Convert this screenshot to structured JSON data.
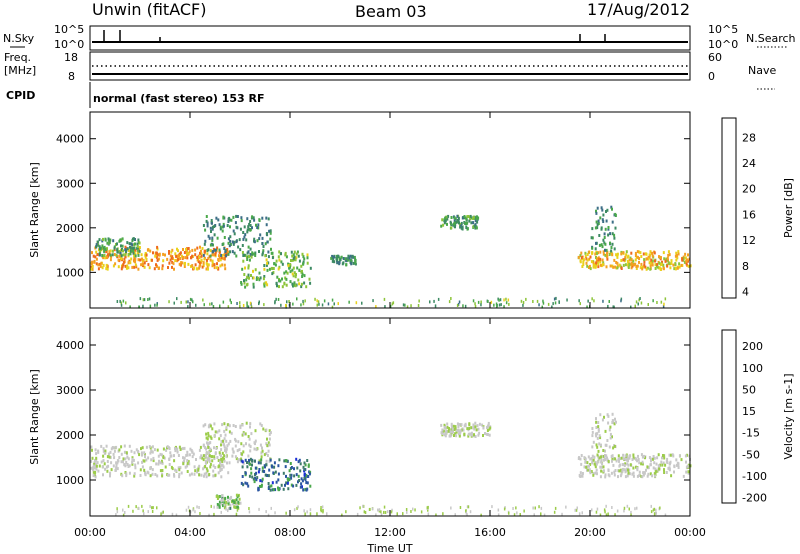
{
  "header": {
    "station": "Unwin (fitACF)",
    "beam": "Beam 03",
    "date": "17/Aug/2012"
  },
  "top_panels": {
    "nsky_label": "N.Sky",
    "nsearch_label": "N.Search",
    "nsky_ticks": [
      "10^5",
      "10^0"
    ],
    "nsearch_ticks": [
      "10^5",
      "10^0"
    ],
    "freq_label_1": "Freq.",
    "freq_label_2": "[MHz]",
    "freq_ticks": [
      "18",
      "8"
    ],
    "nave_label": "Nave",
    "nave_ticks": [
      "60",
      "0"
    ],
    "cpid_label": "CPID",
    "cpid_text": "normal (fast stereo) 153 RF"
  },
  "colors": {
    "power_scale": [
      "#1b2fd6",
      "#2445a8",
      "#3c6e86",
      "#3d8a63",
      "#4aa84a",
      "#8dc43a",
      "#e9d21c",
      "#f4a021",
      "#ee6a1c",
      "#e0301a",
      "#d41c1c"
    ],
    "velocity_scale": [
      "#1b2fd6",
      "#2a55a0",
      "#3d7a6a",
      "#4aa84a",
      "#9ccc4a",
      "#c8c8c8",
      "#c8c8c8",
      "#f0c030",
      "#f09020",
      "#f06020",
      "#e8301a"
    ]
  },
  "chart_data": [
    {
      "type": "heatmap",
      "title": "",
      "xlabel": "Time UT",
      "ylabel": "Slant Range [km]",
      "x_ticks": [
        "00:00",
        "04:00",
        "08:00",
        "12:00",
        "16:00",
        "20:00",
        "00:00"
      ],
      "xlim": [
        0,
        24
      ],
      "y_ticks": [
        "1000",
        "2000",
        "3000",
        "4000"
      ],
      "ylim": [
        200,
        4600
      ],
      "colorbar_label": "Power [dB]",
      "colorbar_ticks": [
        "28",
        "24",
        "20",
        "16",
        "12",
        "8",
        "4"
      ],
      "colorbar_range": [
        0,
        32
      ],
      "scatter_regions": [
        {
          "t_start": 0.0,
          "t_end": 5.5,
          "range_start": 1100,
          "range_end": 1600,
          "value": 22
        },
        {
          "t_start": 0.2,
          "t_end": 2.0,
          "range_start": 1400,
          "range_end": 1800,
          "value": 12
        },
        {
          "t_start": 4.5,
          "t_end": 7.2,
          "range_start": 1400,
          "range_end": 2300,
          "value": 10
        },
        {
          "t_start": 6.0,
          "t_end": 8.8,
          "range_start": 700,
          "range_end": 1500,
          "value": 14
        },
        {
          "t_start": 9.6,
          "t_end": 10.6,
          "range_start": 1200,
          "range_end": 1400,
          "value": 10
        },
        {
          "t_start": 14.0,
          "t_end": 15.5,
          "range_start": 2000,
          "range_end": 2300,
          "value": 12
        },
        {
          "t_start": 19.5,
          "t_end": 24.0,
          "range_start": 1100,
          "range_end": 1500,
          "value": 20
        },
        {
          "t_start": 20.0,
          "t_end": 21.0,
          "range_start": 1500,
          "range_end": 2500,
          "value": 10
        }
      ]
    },
    {
      "type": "heatmap",
      "title": "",
      "xlabel": "Time UT",
      "ylabel": "Slant Range [km]",
      "x_ticks": [
        "00:00",
        "04:00",
        "08:00",
        "12:00",
        "16:00",
        "20:00",
        "00:00"
      ],
      "xlim": [
        0,
        24
      ],
      "y_ticks": [
        "1000",
        "2000",
        "3000",
        "4000"
      ],
      "ylim": [
        200,
        4600
      ],
      "colorbar_label": "Velocity [m s-1]",
      "colorbar_ticks": [
        "200",
        "100",
        "50",
        "15",
        "-15",
        "-50",
        "-100",
        "-200"
      ],
      "colorbar_range": [
        -250,
        250
      ],
      "scatter_regions": [
        {
          "t_start": 0.0,
          "t_end": 5.5,
          "range_start": 1100,
          "range_end": 1800,
          "value": 0
        },
        {
          "t_start": 4.5,
          "t_end": 7.2,
          "range_start": 1400,
          "range_end": 2300,
          "value": 0
        },
        {
          "t_start": 6.0,
          "t_end": 8.8,
          "range_start": 800,
          "range_end": 1500,
          "value": -150
        },
        {
          "t_start": 5.0,
          "t_end": 6.0,
          "range_start": 400,
          "range_end": 700,
          "value": -60
        },
        {
          "t_start": 14.0,
          "t_end": 16.0,
          "range_start": 2000,
          "range_end": 2300,
          "value": 0
        },
        {
          "t_start": 19.5,
          "t_end": 24.0,
          "range_start": 1100,
          "range_end": 1600,
          "value": 0
        },
        {
          "t_start": 20.0,
          "t_end": 21.0,
          "range_start": 1500,
          "range_end": 2500,
          "value": 0
        }
      ]
    }
  ]
}
